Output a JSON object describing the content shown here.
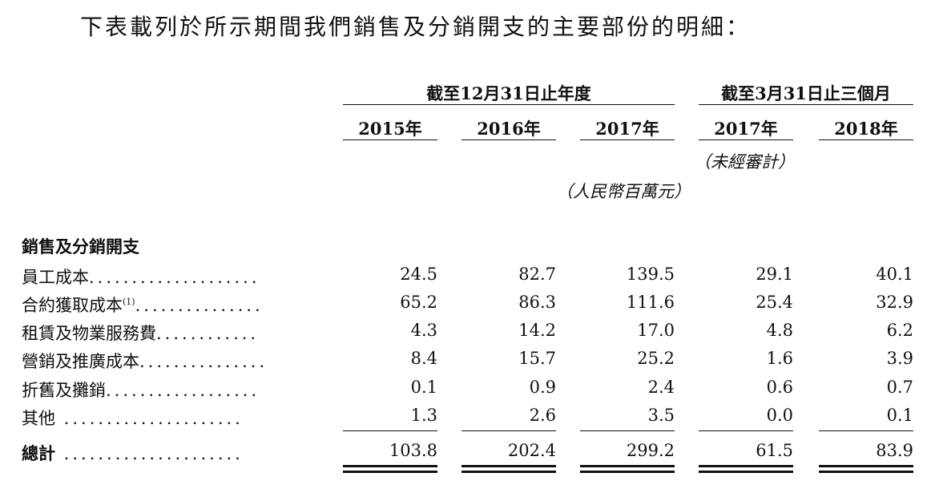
{
  "intro_text": "下表載列於所示期間我們銷售及分銷開支的主要部份的明細：",
  "header": {
    "group_annual": "截至12月31日止年度",
    "group_quarter": "截至3月31日止三個月",
    "years": [
      "2015年",
      "2016年",
      "2017年",
      "2017年",
      "2018年"
    ],
    "unaudited_note": "（未經審計）",
    "unit_note": "（人民幣百萬元）"
  },
  "section_title": "銷售及分銷開支",
  "rows": [
    {
      "label": "員工成本",
      "sup": "",
      "dots": "....................",
      "values": [
        "24.5",
        "82.7",
        "139.5",
        "29.1",
        "40.1"
      ]
    },
    {
      "label": "合約獲取成本",
      "sup": "(1)",
      "dots": "...............",
      "values": [
        "65.2",
        "86.3",
        "111.6",
        "25.4",
        "32.9"
      ]
    },
    {
      "label": "租賃及物業服務費",
      "sup": "",
      "dots": "............",
      "values": [
        "4.3",
        "14.2",
        "17.0",
        "4.8",
        "6.2"
      ]
    },
    {
      "label": "營銷及推廣成本",
      "sup": "",
      "dots": "...............",
      "values": [
        "8.4",
        "15.7",
        "25.2",
        "1.6",
        "3.9"
      ]
    },
    {
      "label": "折舊及攤銷",
      "sup": "",
      "dots": "..................",
      "values": [
        "0.1",
        "0.9",
        "2.4",
        "0.6",
        "0.7"
      ]
    },
    {
      "label": "其他",
      "sup": "",
      "dots": " .....................",
      "values": [
        "1.3",
        "2.6",
        "3.5",
        "0.0",
        "0.1"
      ]
    }
  ],
  "total": {
    "label": "總計",
    "dots": " .....................",
    "values": [
      "103.8",
      "202.4",
      "299.2",
      "61.5",
      "83.9"
    ]
  }
}
